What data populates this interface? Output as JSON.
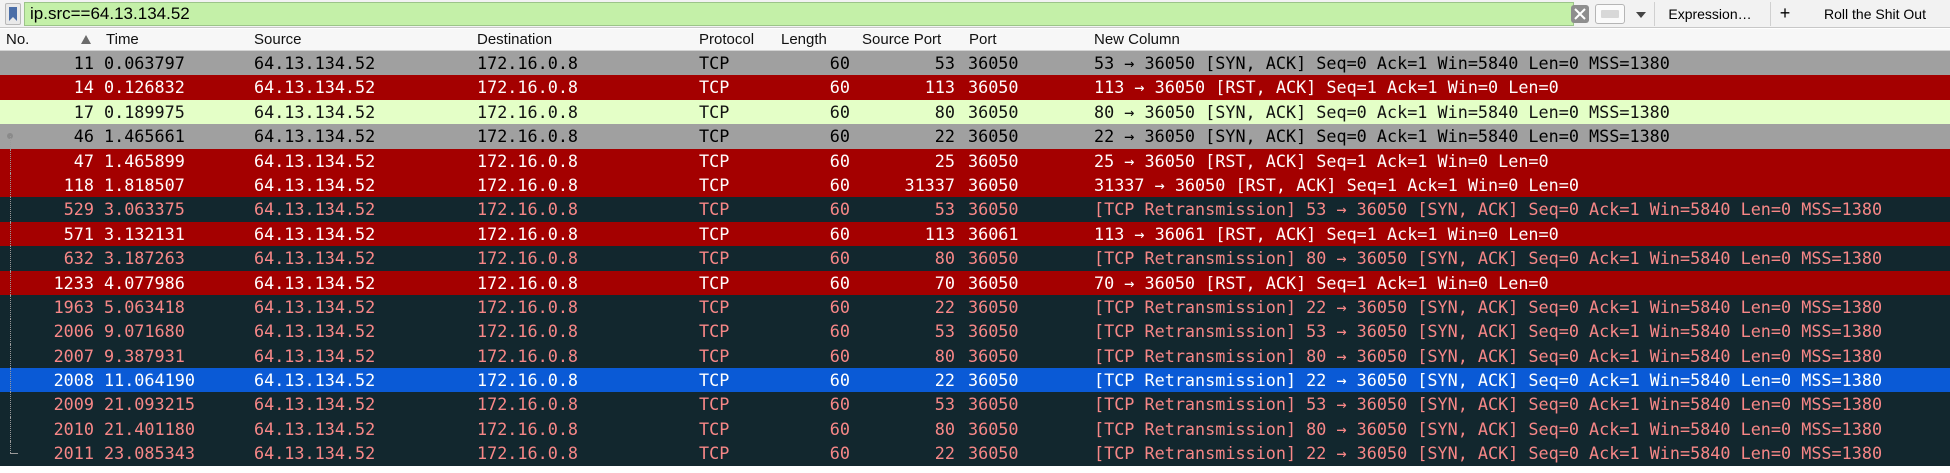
{
  "filter": {
    "value": "ip.src==64.13.134.52",
    "expression_label": "Expression…",
    "plus_label": "+",
    "extra_label": "Roll the Shit Out"
  },
  "columns": [
    "No.",
    "Time",
    "Source",
    "Destination",
    "Protocol",
    "Length",
    "Source Port",
    "Port",
    "New Column"
  ],
  "colors": {
    "gray": {
      "bg": "#a0a0a0",
      "fg": "#000000"
    },
    "red": {
      "bg": "#a40000",
      "fg": "#fffcfc"
    },
    "green": {
      "bg": "#e4ffc7",
      "fg": "#121212"
    },
    "dark": {
      "bg": "#12272e",
      "fg": "#f78787"
    },
    "selected": {
      "bg": "#0a5ad6",
      "fg": "#ffffff"
    }
  },
  "packets": [
    {
      "no": "11",
      "time": "0.063797",
      "src": "64.13.134.52",
      "dst": "172.16.0.8",
      "proto": "TCP",
      "len": "60",
      "sport": "53",
      "port": "36050",
      "info": "53 → 36050 [SYN, ACK] Seq=0 Ack=1 Win=5840 Len=0 MSS=1380",
      "style": "gray",
      "tree": "none"
    },
    {
      "no": "14",
      "time": "0.126832",
      "src": "64.13.134.52",
      "dst": "172.16.0.8",
      "proto": "TCP",
      "len": "60",
      "sport": "113",
      "port": "36050",
      "info": "113 → 36050 [RST, ACK] Seq=1 Ack=1 Win=0 Len=0",
      "style": "red",
      "tree": "none"
    },
    {
      "no": "17",
      "time": "0.189975",
      "src": "64.13.134.52",
      "dst": "172.16.0.8",
      "proto": "TCP",
      "len": "60",
      "sport": "80",
      "port": "36050",
      "info": "80 → 36050 [SYN, ACK] Seq=0 Ack=1 Win=5840 Len=0 MSS=1380",
      "style": "green",
      "tree": "none"
    },
    {
      "no": "46",
      "time": "1.465661",
      "src": "64.13.134.52",
      "dst": "172.16.0.8",
      "proto": "TCP",
      "len": "60",
      "sport": "22",
      "port": "36050",
      "info": "22 → 36050 [SYN, ACK] Seq=0 Ack=1 Win=5840 Len=0 MSS=1380",
      "style": "gray",
      "tree": "start"
    },
    {
      "no": "47",
      "time": "1.465899",
      "src": "64.13.134.52",
      "dst": "172.16.0.8",
      "proto": "TCP",
      "len": "60",
      "sport": "25",
      "port": "36050",
      "info": "25 → 36050 [RST, ACK] Seq=1 Ack=1 Win=0 Len=0",
      "style": "red",
      "tree": "mid"
    },
    {
      "no": "118",
      "time": "1.818507",
      "src": "64.13.134.52",
      "dst": "172.16.0.8",
      "proto": "TCP",
      "len": "60",
      "sport": "31337",
      "port": "36050",
      "info": "31337 → 36050 [RST, ACK] Seq=1 Ack=1 Win=0 Len=0",
      "style": "red",
      "tree": "mid"
    },
    {
      "no": "529",
      "time": "3.063375",
      "src": "64.13.134.52",
      "dst": "172.16.0.8",
      "proto": "TCP",
      "len": "60",
      "sport": "53",
      "port": "36050",
      "info": "[TCP Retransmission] 53 → 36050 [SYN, ACK] Seq=0 Ack=1 Win=5840 Len=0 MSS=1380",
      "style": "dark",
      "tree": "mid"
    },
    {
      "no": "571",
      "time": "3.132131",
      "src": "64.13.134.52",
      "dst": "172.16.0.8",
      "proto": "TCP",
      "len": "60",
      "sport": "113",
      "port": "36061",
      "info": "113 → 36061 [RST, ACK] Seq=1 Ack=1 Win=0 Len=0",
      "style": "red",
      "tree": "mid"
    },
    {
      "no": "632",
      "time": "3.187263",
      "src": "64.13.134.52",
      "dst": "172.16.0.8",
      "proto": "TCP",
      "len": "60",
      "sport": "80",
      "port": "36050",
      "info": "[TCP Retransmission] 80 → 36050 [SYN, ACK] Seq=0 Ack=1 Win=5840 Len=0 MSS=1380",
      "style": "dark",
      "tree": "mid"
    },
    {
      "no": "1233",
      "time": "4.077986",
      "src": "64.13.134.52",
      "dst": "172.16.0.8",
      "proto": "TCP",
      "len": "60",
      "sport": "70",
      "port": "36050",
      "info": "70 → 36050 [RST, ACK] Seq=1 Ack=1 Win=0 Len=0",
      "style": "red",
      "tree": "mid"
    },
    {
      "no": "1963",
      "time": "5.063418",
      "src": "64.13.134.52",
      "dst": "172.16.0.8",
      "proto": "TCP",
      "len": "60",
      "sport": "22",
      "port": "36050",
      "info": "[TCP Retransmission] 22 → 36050 [SYN, ACK] Seq=0 Ack=1 Win=5840 Len=0 MSS=1380",
      "style": "dark",
      "tree": "mid"
    },
    {
      "no": "2006",
      "time": "9.071680",
      "src": "64.13.134.52",
      "dst": "172.16.0.8",
      "proto": "TCP",
      "len": "60",
      "sport": "53",
      "port": "36050",
      "info": "[TCP Retransmission] 53 → 36050 [SYN, ACK] Seq=0 Ack=1 Win=5840 Len=0 MSS=1380",
      "style": "dark",
      "tree": "mid"
    },
    {
      "no": "2007",
      "time": "9.387931",
      "src": "64.13.134.52",
      "dst": "172.16.0.8",
      "proto": "TCP",
      "len": "60",
      "sport": "80",
      "port": "36050",
      "info": "[TCP Retransmission] 80 → 36050 [SYN, ACK] Seq=0 Ack=1 Win=5840 Len=0 MSS=1380",
      "style": "dark",
      "tree": "mid"
    },
    {
      "no": "2008",
      "time": "11.064190",
      "src": "64.13.134.52",
      "dst": "172.16.0.8",
      "proto": "TCP",
      "len": "60",
      "sport": "22",
      "port": "36050",
      "info": "[TCP Retransmission] 22 → 36050 [SYN, ACK] Seq=0 Ack=1 Win=5840 Len=0 MSS=1380",
      "style": "selected",
      "tree": "mid"
    },
    {
      "no": "2009",
      "time": "21.093215",
      "src": "64.13.134.52",
      "dst": "172.16.0.8",
      "proto": "TCP",
      "len": "60",
      "sport": "53",
      "port": "36050",
      "info": "[TCP Retransmission] 53 → 36050 [SYN, ACK] Seq=0 Ack=1 Win=5840 Len=0 MSS=1380",
      "style": "dark",
      "tree": "mid"
    },
    {
      "no": "2010",
      "time": "21.401180",
      "src": "64.13.134.52",
      "dst": "172.16.0.8",
      "proto": "TCP",
      "len": "60",
      "sport": "80",
      "port": "36050",
      "info": "[TCP Retransmission] 80 → 36050 [SYN, ACK] Seq=0 Ack=1 Win=5840 Len=0 MSS=1380",
      "style": "dark",
      "tree": "mid"
    },
    {
      "no": "2011",
      "time": "23.085343",
      "src": "64.13.134.52",
      "dst": "172.16.0.8",
      "proto": "TCP",
      "len": "60",
      "sport": "22",
      "port": "36050",
      "info": "[TCP Retransmission] 22 → 36050 [SYN, ACK] Seq=0 Ack=1 Win=5840 Len=0 MSS=1380",
      "style": "dark",
      "tree": "end"
    }
  ]
}
